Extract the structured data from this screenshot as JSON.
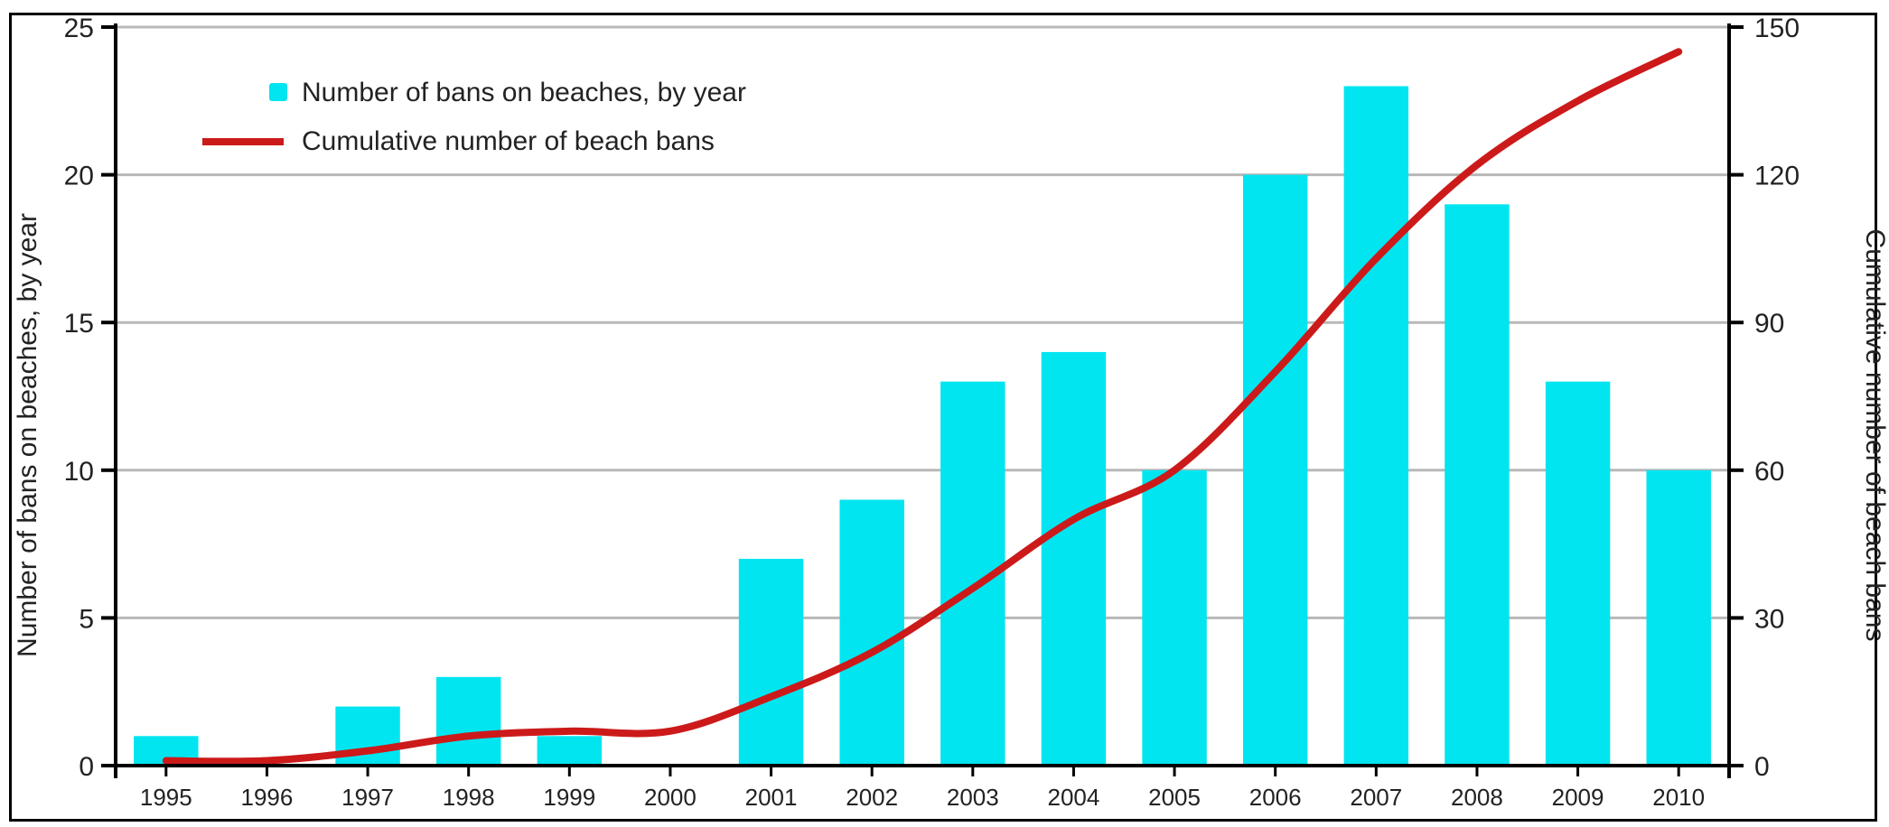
{
  "header_fragment": "",
  "chart_data": {
    "type": "bar",
    "categories": [
      "1995",
      "1996",
      "1997",
      "1998",
      "1999",
      "2000",
      "2001",
      "2002",
      "2003",
      "2004",
      "2005",
      "2006",
      "2007",
      "2008",
      "2009",
      "2010"
    ],
    "series": [
      {
        "name": "Number of bans on beaches, by year",
        "type": "bar",
        "axis": "left",
        "color": "#00e5f0",
        "values": [
          1,
          0,
          2,
          3,
          1,
          0,
          7,
          9,
          13,
          14,
          10,
          20,
          23,
          19,
          13,
          10
        ]
      },
      {
        "name": "Cumulative number of beach bans",
        "type": "line",
        "axis": "right",
        "color": "#cc1a1a",
        "values": [
          1,
          1,
          3,
          6,
          7,
          7,
          14,
          23,
          36,
          50,
          60,
          80,
          103,
          122,
          135,
          145
        ]
      }
    ],
    "ylabel": "Number of bans on beaches, by year",
    "y2label": "Cumulative number of beach bans",
    "ylim": [
      0,
      25
    ],
    "y2lim": [
      0,
      150
    ],
    "yticks": [
      0,
      5,
      10,
      15,
      20,
      25
    ],
    "y2ticks": [
      0,
      30,
      60,
      90,
      120,
      150
    ],
    "grid": true,
    "legend_position": "top-left"
  }
}
